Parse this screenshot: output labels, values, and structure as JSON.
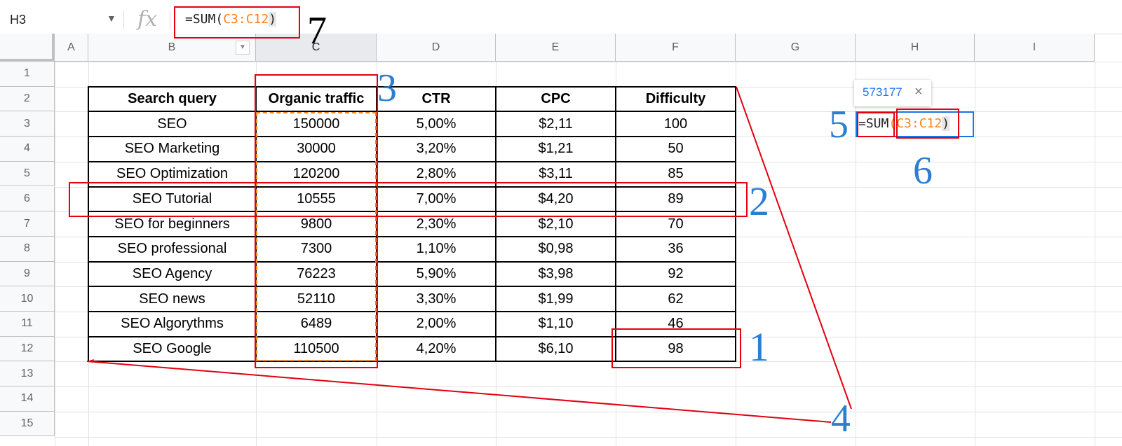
{
  "formula_bar": {
    "cell_ref": "H3",
    "dropdown_icon": "chevron-down-icon",
    "fx_label": "fx",
    "formula_prefix": "=SUM(",
    "formula_range": "C3:C12",
    "formula_suffix": ")"
  },
  "columns": [
    "A",
    "B",
    "C",
    "D",
    "E",
    "F",
    "G",
    "H",
    "I"
  ],
  "selected_column": "C",
  "rows": [
    "1",
    "2",
    "3",
    "4",
    "5",
    "6",
    "7",
    "8",
    "9",
    "10",
    "11",
    "12",
    "13",
    "14",
    "15"
  ],
  "table": {
    "headers": [
      "Search query",
      "Organic traffic",
      "CTR",
      "CPC",
      "Difficulty"
    ],
    "rows": [
      [
        "SEO",
        "150000",
        "5,00%",
        "$2,11",
        "100"
      ],
      [
        "SEO Marketing",
        "30000",
        "3,20%",
        "$1,21",
        "50"
      ],
      [
        "SEO Optimization",
        "120200",
        "2,80%",
        "$3,11",
        "85"
      ],
      [
        "SEO Tutorial",
        "10555",
        "7,00%",
        "$4,20",
        "89"
      ],
      [
        "SEO for beginners",
        "9800",
        "2,30%",
        "$2,10",
        "70"
      ],
      [
        "SEO professional",
        "7300",
        "1,10%",
        "$0,98",
        "36"
      ],
      [
        "SEO Agency",
        "76223",
        "5,90%",
        "$3,98",
        "92"
      ],
      [
        "SEO news",
        "52110",
        "3,30%",
        "$1,99",
        "62"
      ],
      [
        "SEO Algorythms",
        "6489",
        "2,00%",
        "$1,10",
        "46"
      ],
      [
        "SEO Google",
        "110500",
        "4,20%",
        "$6,10",
        "98"
      ]
    ]
  },
  "active_cell": {
    "sum_prefix": "=SUM",
    "open_paren": "(",
    "range": "C3:C12",
    "close_paren": ")",
    "tooltip_value": "573177",
    "tooltip_close": "×"
  },
  "annotations": {
    "labels": [
      "1",
      "2",
      "3",
      "4",
      "5",
      "6",
      "7"
    ],
    "box_color": "#e3000f",
    "label_color": "#2a7fd4"
  },
  "colors": {
    "range_highlight": "#f6831d",
    "active_cell_border": "#1a73e8"
  }
}
